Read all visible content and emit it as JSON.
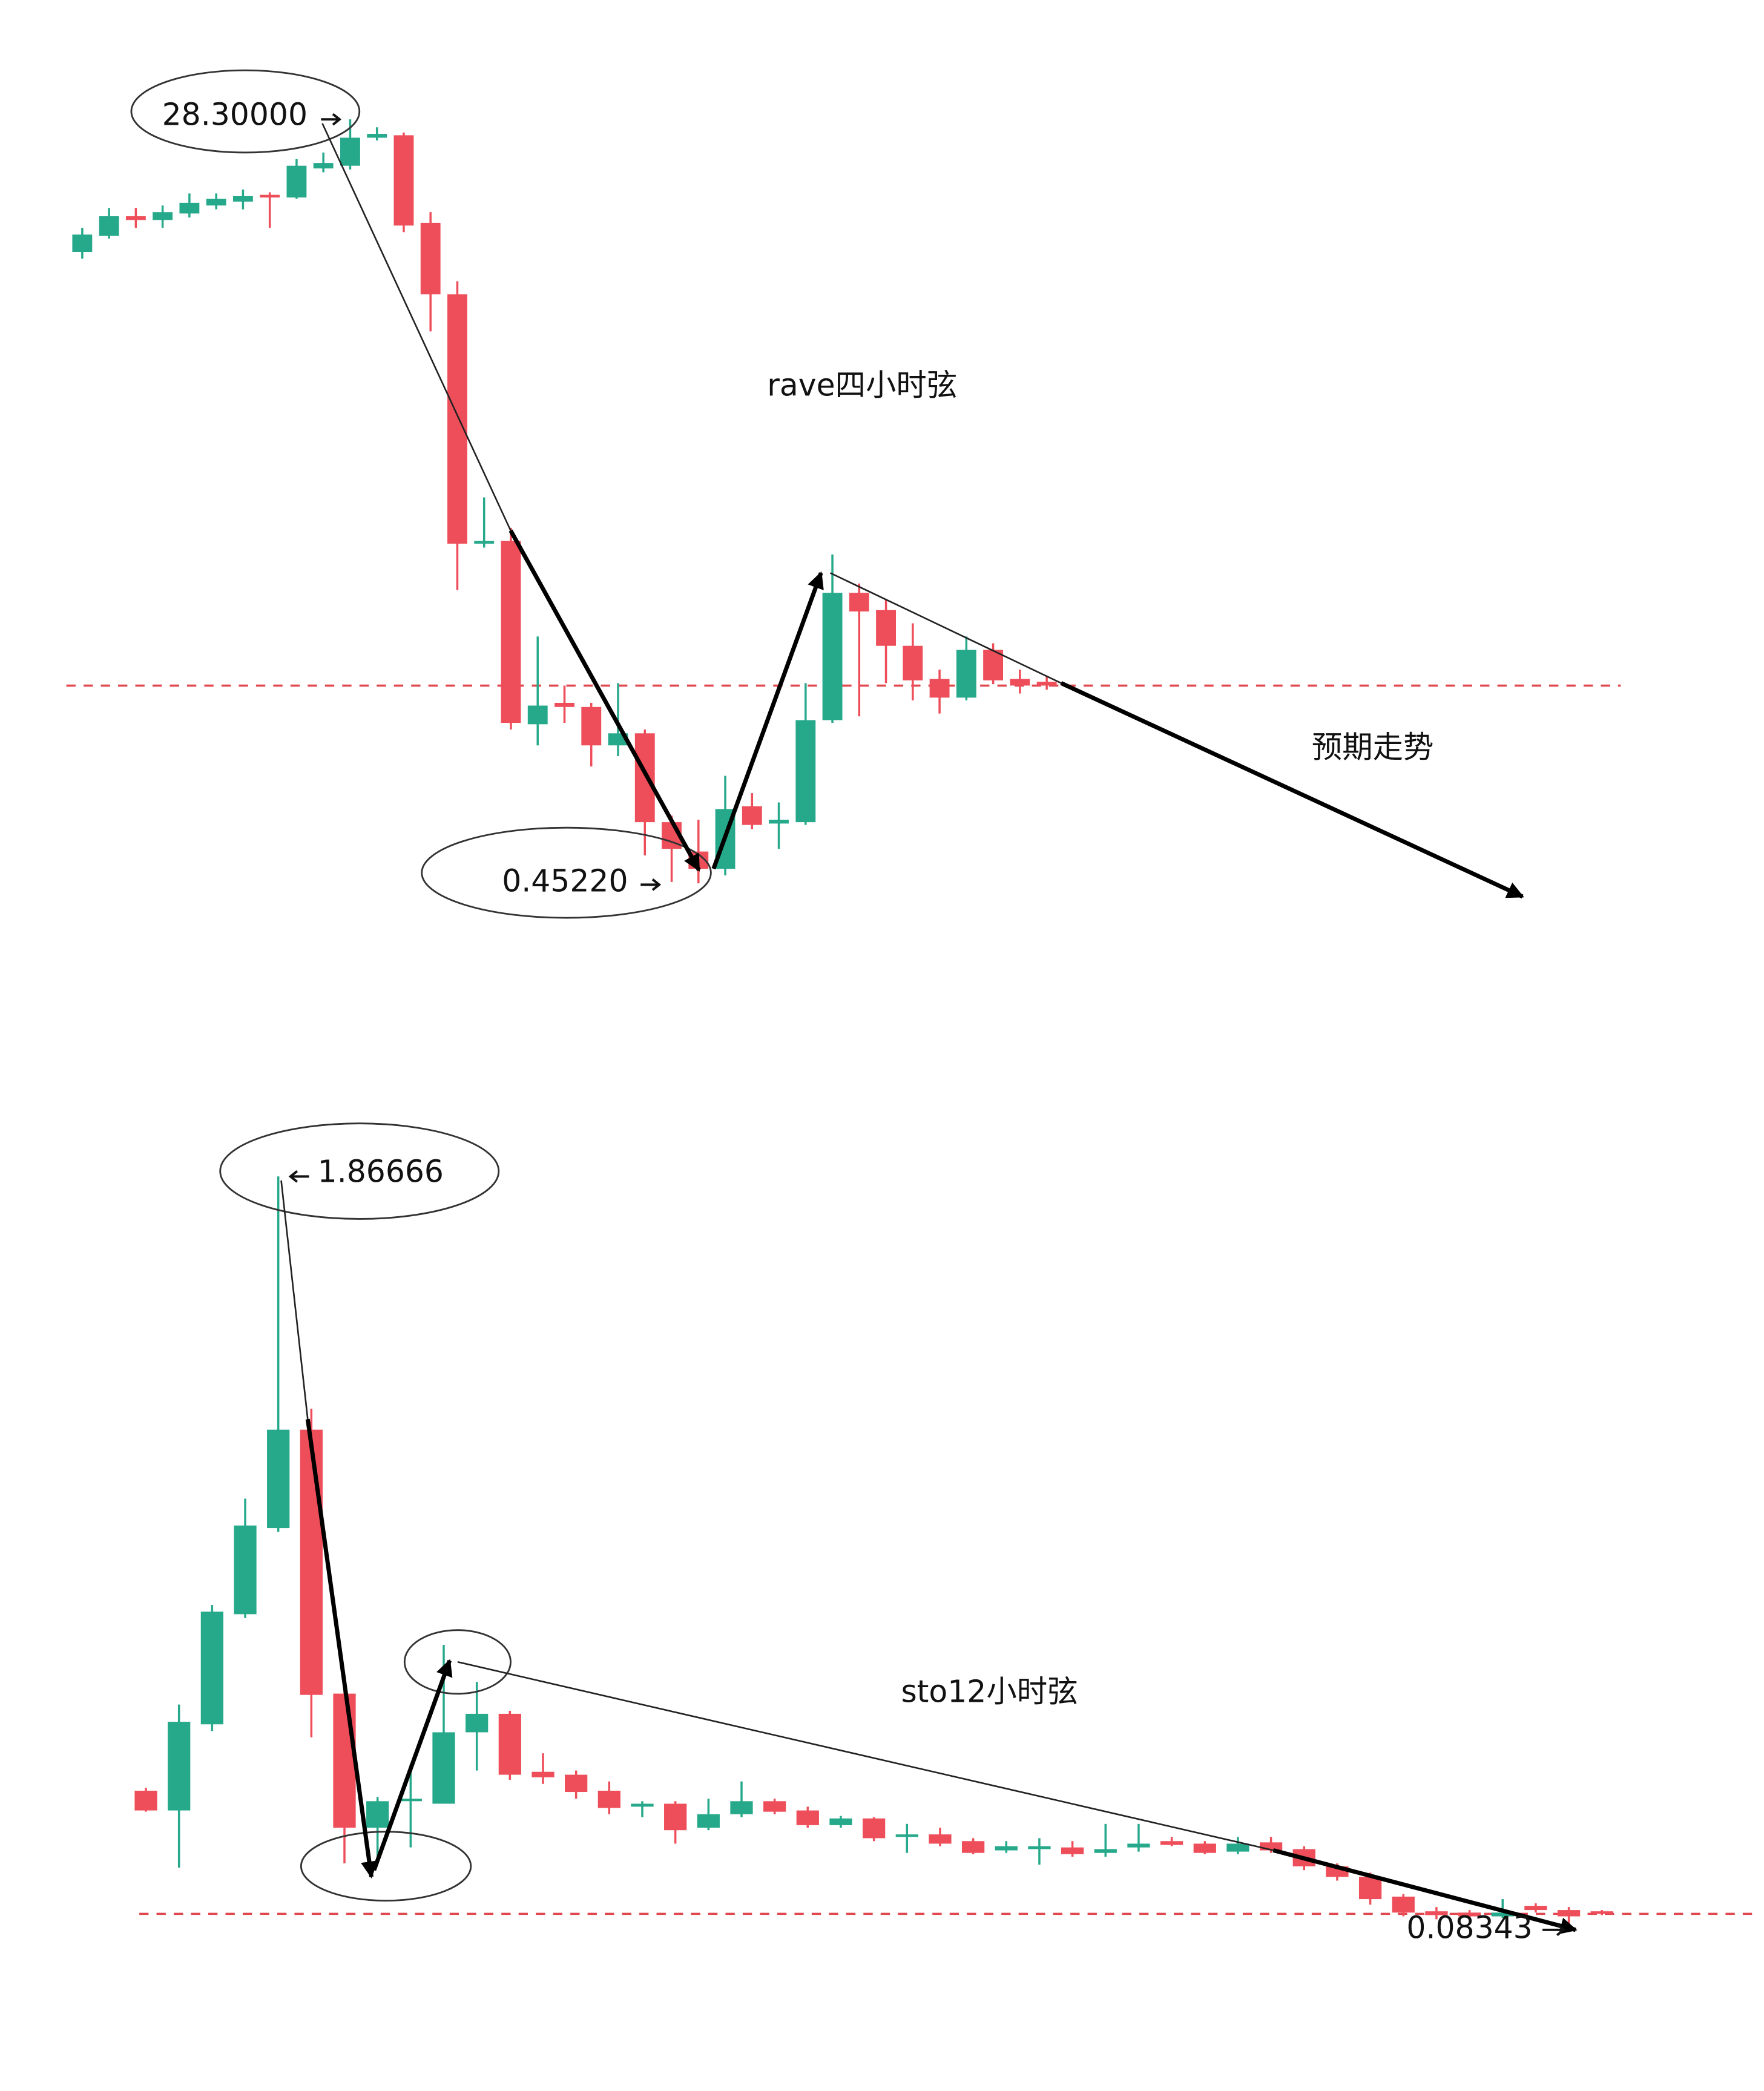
{
  "chart_data": [
    {
      "type": "candlestick",
      "title": "rave四小时弦",
      "annotations": [
        "28.30000",
        "0.45220",
        "预期走势"
      ],
      "up_color": "#26a98b",
      "down_color": "#ee4e5a",
      "reference_line": 7.66,
      "reference_color": "#e0474f",
      "ylim": [
        -0.71,
        32.65
      ],
      "open": [
        23.47,
        24.05,
        24.77,
        24.63,
        24.87,
        25.16,
        25.3,
        25.55,
        25.45,
        26.51,
        26.61,
        27.63,
        27.72,
        24.53,
        21.92,
        12.83,
        12.93,
        6.25,
        7.03,
        6.88,
        5.48,
        5.92,
        2.68,
        1.61,
        0.98,
        3.26,
        2.63,
        2.68,
        6.4,
        11.04,
        10.41,
        9.11,
        7.9,
        7.22,
        8.96,
        7.9,
        7.8
      ],
      "high": [
        24.34,
        25.06,
        25.06,
        25.16,
        25.6,
        25.6,
        25.74,
        25.64,
        26.85,
        27.09,
        28.3,
        28.01,
        27.82,
        24.92,
        22.4,
        14.52,
        13.41,
        9.45,
        7.66,
        7.03,
        7.75,
        6.06,
        2.92,
        2.77,
        4.37,
        3.74,
        3.4,
        7.75,
        12.44,
        11.38,
        10.8,
        9.93,
        8.24,
        9.45,
        9.2,
        8.24,
        8.0
      ],
      "low": [
        23.22,
        23.95,
        24.34,
        24.34,
        24.72,
        25.02,
        25.02,
        24.34,
        25.4,
        26.37,
        26.47,
        27.53,
        24.19,
        20.57,
        11.14,
        12.69,
        6.06,
        5.48,
        6.3,
        4.71,
        5.09,
        1.47,
        0.5,
        0.4522,
        0.74,
        2.43,
        1.71,
        2.58,
        6.3,
        6.54,
        7.75,
        7.12,
        6.64,
        7.12,
        7.71,
        7.37,
        7.51
      ],
      "close": [
        24.1,
        24.77,
        24.63,
        24.92,
        25.26,
        25.4,
        25.5,
        25.45,
        26.61,
        26.71,
        27.63,
        27.77,
        24.43,
        21.92,
        12.83,
        12.93,
        6.3,
        6.93,
        6.88,
        5.48,
        5.92,
        2.68,
        1.71,
        0.98,
        3.16,
        2.58,
        2.77,
        6.4,
        11.04,
        10.36,
        9.11,
        7.85,
        7.22,
        8.96,
        7.85,
        7.66,
        7.66
      ]
    },
    {
      "type": "candlestick",
      "title": "sto12小时弦",
      "annotations": [
        "1.86666",
        "0.08343"
      ],
      "up_color": "#26a98b",
      "down_color": "#ee4e5a",
      "reference_line": 0.112,
      "reference_color": "#e0474f",
      "ylim": [
        -0.005,
        2.078
      ],
      "open": [
        0.405,
        0.358,
        0.563,
        0.825,
        1.03,
        1.264,
        0.636,
        0.317,
        0.38,
        0.374,
        0.544,
        0.588,
        0.45,
        0.443,
        0.405,
        0.367,
        0.374,
        0.317,
        0.349,
        0.38,
        0.358,
        0.323,
        0.339,
        0.295,
        0.301,
        0.285,
        0.263,
        0.266,
        0.27,
        0.257,
        0.27,
        0.285,
        0.279,
        0.26,
        0.282,
        0.266,
        0.225,
        0.2,
        0.153,
        0.118,
        0.115,
        0.106,
        0.131,
        0.121,
        0.118
      ],
      "high": [
        0.412,
        0.61,
        0.847,
        1.1,
        1.86666,
        1.314,
        0.642,
        0.39,
        0.468,
        0.752,
        0.664,
        0.595,
        0.494,
        0.453,
        0.427,
        0.38,
        0.38,
        0.386,
        0.427,
        0.386,
        0.367,
        0.345,
        0.342,
        0.326,
        0.317,
        0.292,
        0.285,
        0.292,
        0.285,
        0.326,
        0.326,
        0.295,
        0.285,
        0.295,
        0.295,
        0.273,
        0.232,
        0.21,
        0.159,
        0.128,
        0.121,
        0.147,
        0.137,
        0.128,
        0.121
      ],
      "low": [
        0.355,
        0.222,
        0.547,
        0.816,
        1.021,
        0.532,
        0.232,
        0.248,
        0.27,
        0.374,
        0.453,
        0.431,
        0.421,
        0.386,
        0.349,
        0.342,
        0.279,
        0.311,
        0.342,
        0.349,
        0.317,
        0.317,
        0.285,
        0.257,
        0.273,
        0.254,
        0.257,
        0.229,
        0.248,
        0.248,
        0.26,
        0.273,
        0.254,
        0.254,
        0.257,
        0.216,
        0.191,
        0.134,
        0.106,
        0.099,
        0.099,
        0.102,
        0.115,
        0.08343,
        0.109
      ],
      "close": [
        0.358,
        0.569,
        0.831,
        1.036,
        1.264,
        0.633,
        0.317,
        0.38,
        0.386,
        0.544,
        0.588,
        0.443,
        0.437,
        0.402,
        0.364,
        0.374,
        0.311,
        0.349,
        0.38,
        0.355,
        0.323,
        0.339,
        0.292,
        0.301,
        0.279,
        0.257,
        0.273,
        0.273,
        0.254,
        0.266,
        0.279,
        0.276,
        0.257,
        0.279,
        0.263,
        0.225,
        0.2,
        0.147,
        0.115,
        0.109,
        0.106,
        0.115,
        0.121,
        0.106,
        0.112
      ]
    }
  ]
}
